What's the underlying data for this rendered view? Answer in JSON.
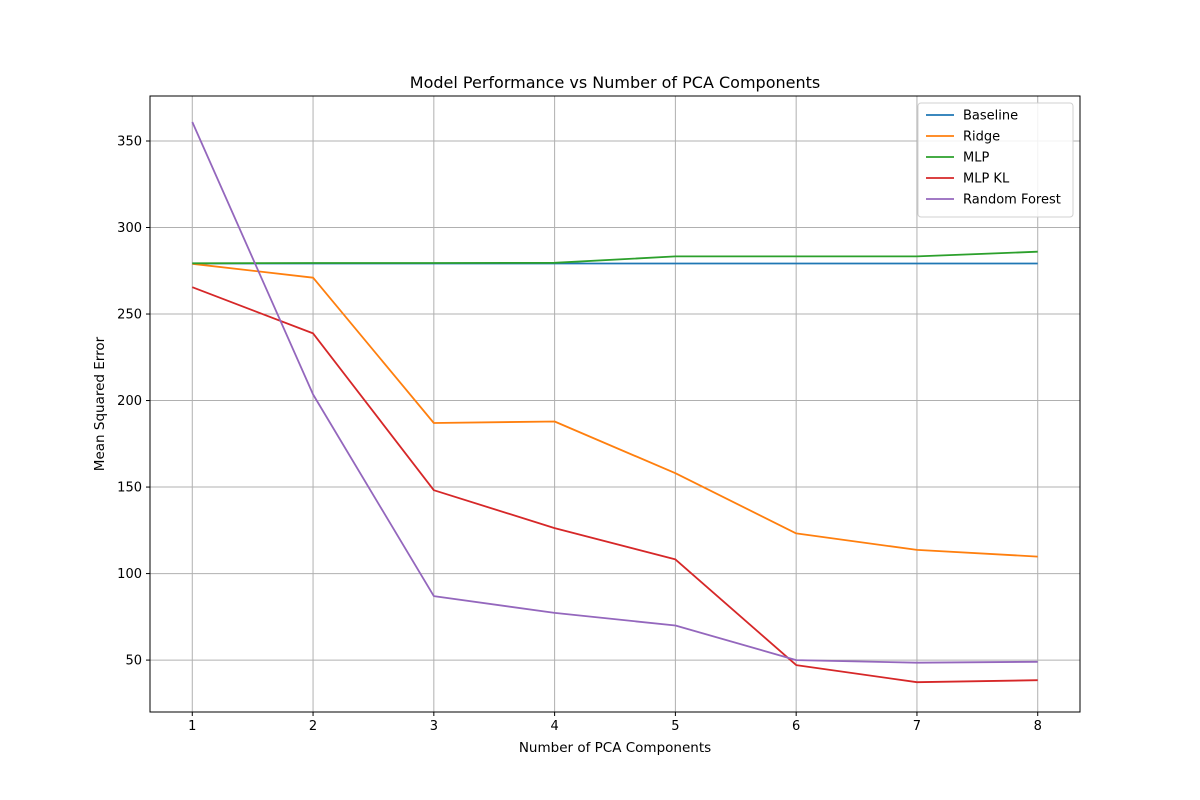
{
  "chart_data": {
    "type": "line",
    "title": "Model Performance vs Number of PCA Components",
    "xlabel": "Number of PCA Components",
    "ylabel": "Mean Squared Error",
    "x": [
      1,
      2,
      3,
      4,
      5,
      6,
      7,
      8
    ],
    "xlim": [
      0.65,
      8.35
    ],
    "ylim": [
      20,
      376
    ],
    "xticks": [
      "1",
      "2",
      "3",
      "4",
      "5",
      "6",
      "7",
      "8"
    ],
    "yticks": [
      "50",
      "100",
      "150",
      "200",
      "250",
      "300",
      "350"
    ],
    "grid": true,
    "legend_position": "upper right",
    "series": [
      {
        "name": "Baseline",
        "color": "#1f77b4",
        "values": [
          279.2,
          279.2,
          279.2,
          279.2,
          279.2,
          279.2,
          279.2,
          279.2
        ]
      },
      {
        "name": "Ridge",
        "color": "#ff7f0e",
        "values": [
          279.0,
          271.0,
          187.0,
          187.9,
          158.0,
          123.2,
          113.7,
          109.8
        ]
      },
      {
        "name": "MLP",
        "color": "#2ca02c",
        "values": [
          279.3,
          279.5,
          279.5,
          279.6,
          283.3,
          283.3,
          283.3,
          286.0
        ]
      },
      {
        "name": "MLP KL",
        "color": "#d62728",
        "values": [
          265.5,
          238.8,
          148.2,
          126.3,
          108.2,
          47.1,
          37.2,
          38.4
        ]
      },
      {
        "name": "Random Forest",
        "color": "#9467bd",
        "values": [
          361.0,
          203.5,
          87.0,
          77.3,
          70.0,
          50.0,
          48.5,
          49.0
        ]
      }
    ]
  }
}
